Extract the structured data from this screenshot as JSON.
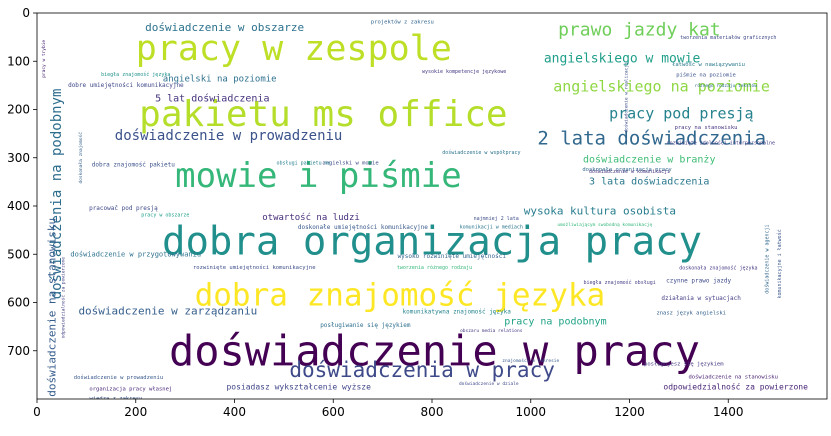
{
  "chart_data": {
    "type": "wordcloud",
    "title": "",
    "xlabel": "",
    "ylabel": "",
    "xlim": [
      0,
      1600
    ],
    "ylim": [
      800,
      0
    ],
    "xticks": [
      0,
      200,
      400,
      600,
      800,
      1000,
      1200,
      1400
    ],
    "yticks": [
      0,
      100,
      200,
      300,
      400,
      500,
      600,
      700
    ],
    "palette": "viridis",
    "words": [
      {
        "text": "doświadczenie w pracy",
        "x": 805,
        "y": 700,
        "size": 84,
        "color": "#440154",
        "rotate": 0
      },
      {
        "text": "dobra organizacja pracy",
        "x": 800,
        "y": 475,
        "size": 78,
        "color": "#21908c",
        "rotate": 0
      },
      {
        "text": "pakietu ms office",
        "x": 580,
        "y": 210,
        "size": 72,
        "color": "#b5de2b",
        "rotate": 0
      },
      {
        "text": "pracy w zespole",
        "x": 520,
        "y": 75,
        "size": 70,
        "color": "#bddf26",
        "rotate": 0
      },
      {
        "text": "dobra znajomość języka",
        "x": 735,
        "y": 585,
        "size": 62,
        "color": "#fde725",
        "rotate": 0
      },
      {
        "text": "mowie i piśmie",
        "x": 570,
        "y": 338,
        "size": 68,
        "color": "#35b779",
        "rotate": 0
      },
      {
        "text": "doświadczenia w pracy",
        "x": 780,
        "y": 740,
        "size": 42,
        "color": "#3e4a89",
        "rotate": 0
      },
      {
        "text": "2 lata doświadczenia",
        "x": 1245,
        "y": 260,
        "size": 38,
        "color": "#31688e",
        "rotate": 0
      },
      {
        "text": "prawo jazdy kat",
        "x": 1220,
        "y": 35,
        "size": 36,
        "color": "#6ece58",
        "rotate": 0
      },
      {
        "text": "angielskiego na poziomie",
        "x": 1265,
        "y": 152,
        "size": 30,
        "color": "#8fd744",
        "rotate": 0
      },
      {
        "text": "pracy pod presją",
        "x": 1305,
        "y": 208,
        "size": 30,
        "color": "#26828e",
        "rotate": 0
      },
      {
        "text": "doświadczenie w prowadzeniu",
        "x": 388,
        "y": 255,
        "size": 28,
        "color": "#3b528b",
        "rotate": 0
      },
      {
        "text": "angielskiego w mowie",
        "x": 1185,
        "y": 95,
        "size": 26,
        "color": "#1f9e89",
        "rotate": 0
      },
      {
        "text": "doświadczenie w obszarze",
        "x": 380,
        "y": 30,
        "size": 22,
        "color": "#2c728e",
        "rotate": 0
      },
      {
        "text": "wysoka kultura osobista",
        "x": 1140,
        "y": 410,
        "size": 22,
        "color": "#287d8e",
        "rotate": 0
      },
      {
        "text": "doświadczenie w branży",
        "x": 1240,
        "y": 305,
        "size": 20,
        "color": "#3dbc74",
        "rotate": 0
      },
      {
        "text": "3 lata doświadczenia",
        "x": 1240,
        "y": 350,
        "size": 20,
        "color": "#2a788e",
        "rotate": 0
      },
      {
        "text": "doświadczenie w zarządzaniu",
        "x": 265,
        "y": 618,
        "size": 22,
        "color": "#355f8d",
        "rotate": 0
      },
      {
        "text": "pracy na podobnym",
        "x": 1050,
        "y": 640,
        "size": 20,
        "color": "#20a386",
        "rotate": 0
      },
      {
        "text": "5 lat doświadczenia",
        "x": 355,
        "y": 178,
        "size": 20,
        "color": "#46337e",
        "rotate": 0
      },
      {
        "text": "angielski na poziomie",
        "x": 370,
        "y": 138,
        "size": 18,
        "color": "#2d708e",
        "rotate": 0
      },
      {
        "text": "otwartość na ludzi",
        "x": 555,
        "y": 425,
        "size": 18,
        "color": "#472d7b",
        "rotate": 0
      },
      {
        "text": "doświadczenia na podobnym",
        "x": 40,
        "y": 375,
        "size": 28,
        "color": "#2e6e8e",
        "rotate": -90
      },
      {
        "text": "doświadczenie na stanowisku",
        "x": 30,
        "y": 610,
        "size": 22,
        "color": "#365c8d",
        "rotate": -90
      },
      {
        "text": "posiadasz wykształcenie wyższe",
        "x": 530,
        "y": 775,
        "size": 16,
        "color": "#404688",
        "rotate": 0
      },
      {
        "text": "odpowiedzialność za powierzone",
        "x": 1415,
        "y": 775,
        "size": 16,
        "color": "#482576",
        "rotate": 0
      },
      {
        "text": "doświadczenie w przygotowywaniu",
        "x": 200,
        "y": 500,
        "size": 14,
        "color": "#2c728e",
        "rotate": 0
      },
      {
        "text": "doskonałe umiejętności komunikacyjne",
        "x": 660,
        "y": 445,
        "size": 12,
        "color": "#38598c",
        "rotate": 0
      },
      {
        "text": "dobra znajomość pakietu",
        "x": 195,
        "y": 315,
        "size": 12,
        "color": "#3b528b",
        "rotate": 0
      },
      {
        "text": "pracowač pod presją",
        "x": 175,
        "y": 405,
        "size": 12,
        "color": "#3e4989",
        "rotate": 0
      },
      {
        "text": "dobre umiejętności komunikacyjne",
        "x": 180,
        "y": 150,
        "size": 12,
        "color": "#3f4788",
        "rotate": 0
      },
      {
        "text": "wysokie kompetencje językowe",
        "x": 865,
        "y": 122,
        "size": 10,
        "color": "#443983",
        "rotate": 0
      },
      {
        "text": "pracy na stanowisku",
        "x": 1355,
        "y": 238,
        "size": 11,
        "color": "#463480",
        "rotate": 0
      },
      {
        "text": "łatwość w nawiązywaniu",
        "x": 1360,
        "y": 108,
        "size": 11,
        "color": "#2a788e",
        "rotate": 0
      },
      {
        "text": "piśmie na poziomie",
        "x": 1355,
        "y": 130,
        "size": 11,
        "color": "#3b528b",
        "rotate": 0
      },
      {
        "text": "komunikatywna znajomość języka",
        "x": 850,
        "y": 620,
        "size": 12,
        "color": "#25848e",
        "rotate": 0
      },
      {
        "text": "posługiwanie się językiem",
        "x": 665,
        "y": 648,
        "size": 12,
        "color": "#2e6f8e",
        "rotate": 0
      },
      {
        "text": "wysoko rozwinięte umiejętności",
        "x": 840,
        "y": 505,
        "size": 12,
        "color": "#33638d",
        "rotate": 0
      },
      {
        "text": "rozwinięte umiejętności komunikacyjne",
        "x": 440,
        "y": 528,
        "size": 11,
        "color": "#3d4d8a",
        "rotate": 0
      },
      {
        "text": "doświadczenie w prowadzeniu",
        "x": 165,
        "y": 756,
        "size": 11,
        "color": "#38588c",
        "rotate": 0
      },
      {
        "text": "organizacja pracy własnej",
        "x": 190,
        "y": 780,
        "size": 11,
        "color": "#482878",
        "rotate": 0
      },
      {
        "text": "wiedza z zakresu",
        "x": 160,
        "y": 800,
        "size": 11,
        "color": "#39568c",
        "rotate": 0
      },
      {
        "text": "czynne prawo jazdy",
        "x": 1340,
        "y": 555,
        "size": 12,
        "color": "#3e4989",
        "rotate": 0
      },
      {
        "text": "działania w sytuacjach",
        "x": 1345,
        "y": 592,
        "size": 12,
        "color": "#433e85",
        "rotate": 0
      },
      {
        "text": "znasz język angielski",
        "x": 1325,
        "y": 623,
        "size": 11,
        "color": "#34608d",
        "rotate": 0
      },
      {
        "text": "posługujesz się językiem",
        "x": 1310,
        "y": 728,
        "size": 11,
        "color": "#453781",
        "rotate": 0
      },
      {
        "text": "doświadczenie na stanowisku",
        "x": 1410,
        "y": 755,
        "size": 11,
        "color": "#482173",
        "rotate": 0
      },
      {
        "text": "doskonała organizacja pracy",
        "x": 1195,
        "y": 325,
        "size": 11,
        "color": "#2f6b8e",
        "rotate": 0
      },
      {
        "text": "pracy w obszarze",
        "x": 260,
        "y": 420,
        "size": 10,
        "color": "#1fa088",
        "rotate": 0
      },
      {
        "text": "najmniej 2 lata",
        "x": 930,
        "y": 427,
        "size": 10,
        "color": "#3d4e8a",
        "rotate": 0
      },
      {
        "text": "angielski w mowie",
        "x": 635,
        "y": 312,
        "size": 11,
        "color": "#3e4a89",
        "rotate": 0
      },
      {
        "text": "obsługi pakietu ms",
        "x": 540,
        "y": 312,
        "size": 10,
        "color": "#27808e",
        "rotate": 0
      },
      {
        "text": "doświadczenie w współpracy",
        "x": 900,
        "y": 290,
        "size": 10,
        "color": "#2c738e",
        "rotate": 0
      },
      {
        "text": "rozwinięte zdolności interpersonalne",
        "x": 1385,
        "y": 270,
        "size": 10,
        "color": "#433d84",
        "rotate": 0
      },
      {
        "text": "doświadczenie w komunikacji",
        "x": 1200,
        "y": 330,
        "size": 10,
        "color": "#46337e",
        "rotate": 0
      },
      {
        "text": "komunikacji w mediach",
        "x": 920,
        "y": 445,
        "size": 10,
        "color": "#2b758e",
        "rotate": 0
      },
      {
        "text": "tworzenia różnego rodzaju",
        "x": 805,
        "y": 528,
        "size": 10,
        "color": "#35b779",
        "rotate": 0
      },
      {
        "text": "projektów z zakresu",
        "x": 740,
        "y": 20,
        "size": 11,
        "color": "#32648e",
        "rotate": 0
      },
      {
        "text": "biegła znajomość obsługi",
        "x": 1180,
        "y": 560,
        "size": 10,
        "color": "#433e85",
        "rotate": 0
      },
      {
        "text": "umożliwiającym swobodną komunikację",
        "x": 1150,
        "y": 440,
        "size": 9,
        "color": "#32b67a",
        "rotate": 0
      },
      {
        "text": "doskonała znajomość języka",
        "x": 1380,
        "y": 530,
        "size": 10,
        "color": "#443a83",
        "rotate": 0
      },
      {
        "text": "biegła znajomość języka",
        "x": 200,
        "y": 128,
        "size": 10,
        "color": "#21918c",
        "rotate": 0
      },
      {
        "text": "tworzenia materiałów graficznych",
        "x": 1400,
        "y": 52,
        "size": 10,
        "color": "#3f4889",
        "rotate": 0
      },
      {
        "text": "różnego rodzaju tekstów",
        "x": 1395,
        "y": 152,
        "size": 9,
        "color": "#2e6e8e",
        "rotate": 0
      },
      {
        "text": "obszaru media relations",
        "x": 920,
        "y": 660,
        "size": 9,
        "color": "#453882",
        "rotate": 0
      },
      {
        "text": "znajomości w zakresie",
        "x": 1000,
        "y": 722,
        "size": 9,
        "color": "#38598c",
        "rotate": 0
      },
      {
        "text": "doświadczenie w dziale",
        "x": 915,
        "y": 770,
        "size": 9,
        "color": "#3e4989",
        "rotate": 0
      },
      {
        "text": "doświadczenie w agencji",
        "x": 1480,
        "y": 510,
        "size": 10,
        "color": "#31688e",
        "rotate": -90
      },
      {
        "text": "komunikacyjne i łatwość",
        "x": 1505,
        "y": 520,
        "size": 10,
        "color": "#39558c",
        "rotate": -90
      },
      {
        "text": "odpowiedzialność za powierzone",
        "x": 55,
        "y": 590,
        "size": 9,
        "color": "#424086",
        "rotate": -90
      },
      {
        "text": "doskonała znajomość",
        "x": 90,
        "y": 300,
        "size": 9,
        "color": "#34618d",
        "rotate": -90
      },
      {
        "text": "doświadczenie w realizacji",
        "x": 1195,
        "y": 175,
        "size": 9,
        "color": "#3d4e8a",
        "rotate": -90
      },
      {
        "text": "pracy w trybie",
        "x": 15,
        "y": 95,
        "size": 9,
        "color": "#482475",
        "rotate": -90
      }
    ]
  }
}
